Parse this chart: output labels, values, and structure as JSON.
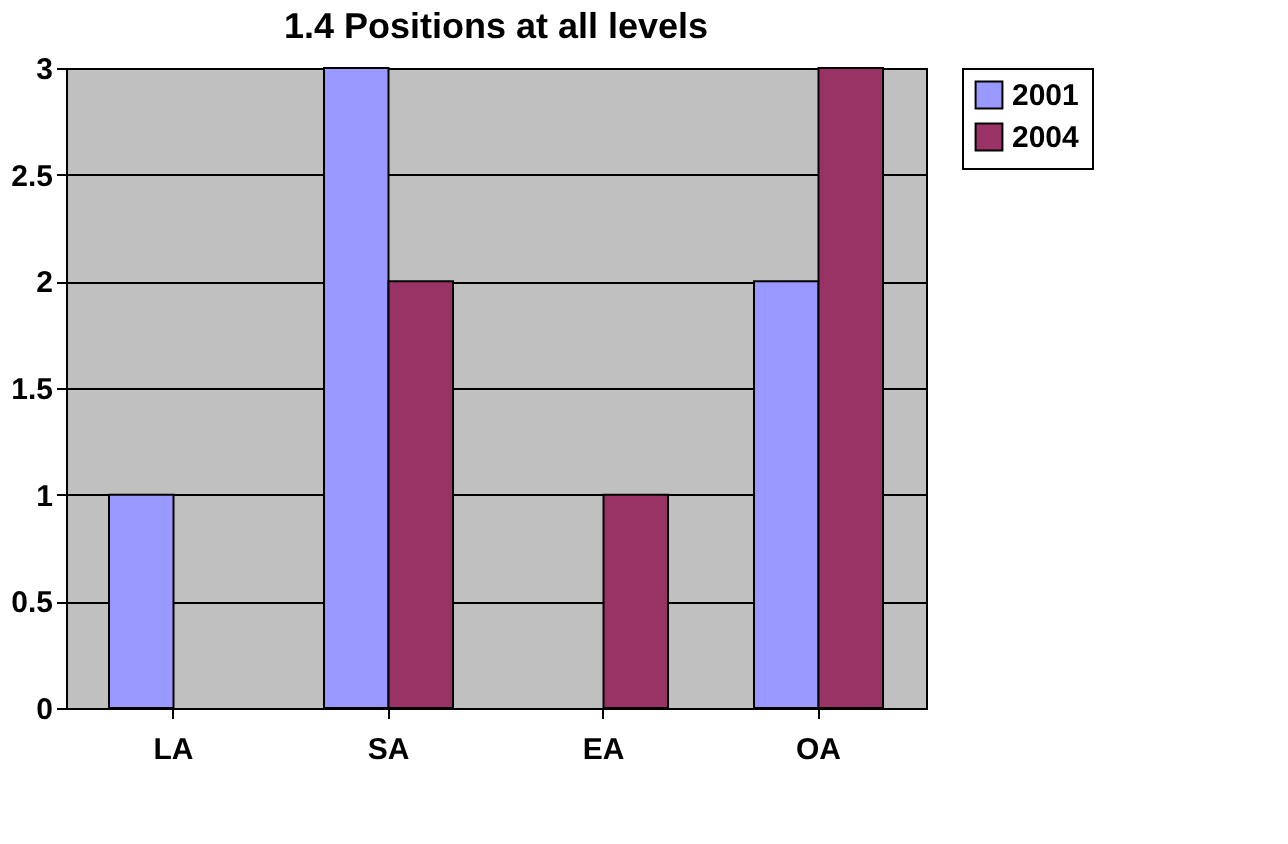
{
  "chart_data": {
    "type": "bar",
    "title": "1.4 Positions at all levels",
    "categories": [
      "LA",
      "SA",
      "EA",
      "OA"
    ],
    "series": [
      {
        "name": "2001",
        "color": "#9999ff",
        "values": [
          1,
          3,
          null,
          2
        ]
      },
      {
        "name": "2004",
        "color": "#993366",
        "values": [
          null,
          2,
          1,
          3
        ]
      }
    ],
    "ylim": [
      0,
      3
    ],
    "yticks": [
      0,
      0.5,
      1,
      1.5,
      2,
      2.5,
      3
    ],
    "grid": "y",
    "legend": "right"
  }
}
